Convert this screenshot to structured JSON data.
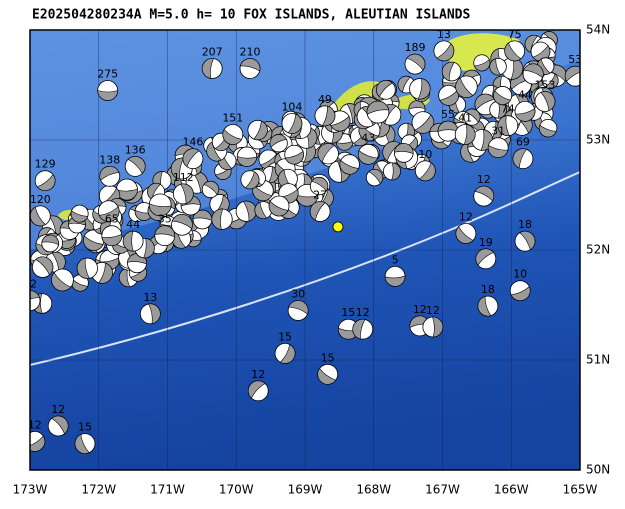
{
  "title": "E202504280234A  M=5.0  h=  10 FOX ISLANDS, ALEUTIAN ISLANDS",
  "map": {
    "lon_range": [
      -173,
      -165
    ],
    "lat_range": [
      50,
      54
    ],
    "xticks": [
      {
        "value": -173,
        "label": "173W"
      },
      {
        "value": -172,
        "label": "172W"
      },
      {
        "value": -171,
        "label": "171W"
      },
      {
        "value": -170,
        "label": "170W"
      },
      {
        "value": -169,
        "label": "169W"
      },
      {
        "value": -168,
        "label": "168W"
      },
      {
        "value": -167,
        "label": "167W"
      },
      {
        "value": -166,
        "label": "166W"
      },
      {
        "value": -165,
        "label": "165W"
      }
    ],
    "yticks": [
      {
        "value": 54,
        "label": "54N"
      },
      {
        "value": 53,
        "label": "53N"
      },
      {
        "value": 52,
        "label": "52N"
      },
      {
        "value": 51,
        "label": "51N"
      },
      {
        "value": 50,
        "label": "50N"
      }
    ],
    "epicenter": {
      "lon": -168.52,
      "lat": 52.21
    },
    "events": [
      {
        "label": "275",
        "lon": -171.87,
        "lat": 53.45
      },
      {
        "label": "207",
        "lon": -170.35,
        "lat": 53.65
      },
      {
        "label": "210",
        "lon": -169.8,
        "lat": 53.65
      },
      {
        "label": "104",
        "lon": -169.19,
        "lat": 53.15
      },
      {
        "label": "151",
        "lon": -170.05,
        "lat": 53.05
      },
      {
        "label": "146",
        "lon": -170.63,
        "lat": 52.83
      },
      {
        "label": "136",
        "lon": -171.47,
        "lat": 52.76
      },
      {
        "label": "129",
        "lon": -172.78,
        "lat": 52.63
      },
      {
        "label": "120",
        "lon": -172.85,
        "lat": 52.31
      },
      {
        "label": "138",
        "lon": -171.84,
        "lat": 52.67
      },
      {
        "label": "112",
        "lon": -170.77,
        "lat": 52.51
      },
      {
        "label": "65",
        "lon": -171.81,
        "lat": 52.13
      },
      {
        "label": "44",
        "lon": -171.5,
        "lat": 52.08
      },
      {
        "label": "35",
        "lon": -171.04,
        "lat": 52.13
      },
      {
        "label": "49",
        "lon": -168.71,
        "lat": 53.22
      },
      {
        "label": "43",
        "lon": -168.08,
        "lat": 52.87
      },
      {
        "label": "27",
        "lon": -168.78,
        "lat": 52.35
      },
      {
        "label": "189",
        "lon": -167.4,
        "lat": 53.69
      },
      {
        "label": "13",
        "lon": -166.98,
        "lat": 53.81
      },
      {
        "label": "75",
        "lon": -165.95,
        "lat": 53.81
      },
      {
        "label": "53",
        "lon": -165.07,
        "lat": 53.58
      },
      {
        "label": "153",
        "lon": -165.51,
        "lat": 53.35
      },
      {
        "label": "44",
        "lon": -165.8,
        "lat": 53.26
      },
      {
        "label": "74",
        "lon": -166.05,
        "lat": 53.13
      },
      {
        "label": "55",
        "lon": -166.92,
        "lat": 53.08
      },
      {
        "label": "41",
        "lon": -166.67,
        "lat": 53.05
      },
      {
        "label": "31",
        "lon": -166.19,
        "lat": 52.93
      },
      {
        "label": "69",
        "lon": -165.83,
        "lat": 52.83
      },
      {
        "label": "12",
        "lon": -166.4,
        "lat": 52.49
      },
      {
        "label": "10",
        "lon": -167.25,
        "lat": 52.72
      },
      {
        "label": "12",
        "lon": -166.66,
        "lat": 52.15
      },
      {
        "label": "19",
        "lon": -166.37,
        "lat": 51.92
      },
      {
        "label": "18",
        "lon": -165.8,
        "lat": 52.08
      },
      {
        "label": "10",
        "lon": -165.87,
        "lat": 51.63
      },
      {
        "label": "18",
        "lon": -166.34,
        "lat": 51.49
      },
      {
        "label": "12",
        "lon": -167.33,
        "lat": 51.31
      },
      {
        "label": "12",
        "lon": -167.14,
        "lat": 51.3
      },
      {
        "label": "15",
        "lon": -168.37,
        "lat": 51.28
      },
      {
        "label": "12",
        "lon": -168.16,
        "lat": 51.28
      },
      {
        "label": "30",
        "lon": -169.1,
        "lat": 51.45
      },
      {
        "label": "15",
        "lon": -169.29,
        "lat": 51.06
      },
      {
        "label": "15",
        "lon": -168.67,
        "lat": 50.87
      },
      {
        "label": "12",
        "lon": -169.68,
        "lat": 50.72
      },
      {
        "label": "12",
        "lon": -172.59,
        "lat": 50.4
      },
      {
        "label": "12",
        "lon": -172.93,
        "lat": 50.26
      },
      {
        "label": "15",
        "lon": -172.2,
        "lat": 50.24
      },
      {
        "label": "12",
        "lon": -173.0,
        "lat": 51.54
      },
      {
        "label": "13",
        "lon": -171.25,
        "lat": 51.42
      },
      {
        "label": "5",
        "lon": -167.69,
        "lat": 51.76
      }
    ]
  }
}
